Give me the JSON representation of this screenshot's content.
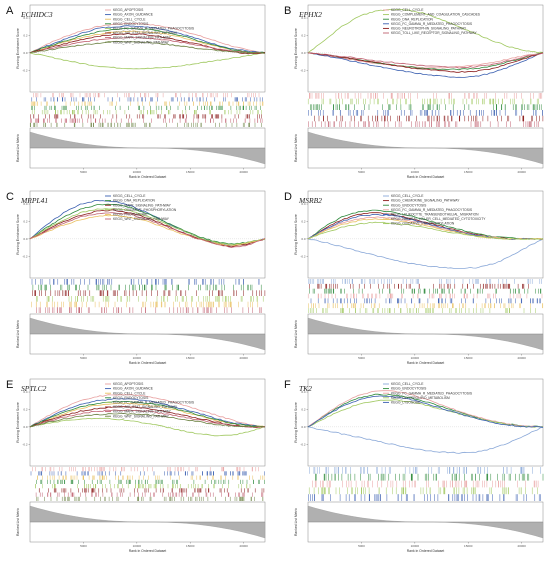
{
  "figure": {
    "panels": [
      {
        "letter": "A",
        "gene": "ECHIDC3",
        "ylabel_top": "Running Enrichment Score",
        "ylabel_bottom": "Ranked List Metric",
        "xlabel": "Rank in Ordered Dataset",
        "xticks": [
          "5000",
          "10000",
          "15000",
          "20000"
        ],
        "yticks": [
          "0.4",
          "0.2",
          "0.0",
          "-0.2"
        ],
        "legend": [
          "KEGG_APOPTOSIS",
          "KEGG_AXON_GUIDANCE",
          "KEGG_CELL_CYCLE",
          "KEGG_ENDOCYTOSIS",
          "KEGG_FC_GAMMA_R_MEDIATED_PHAGOCYTOSIS",
          "KEGG_JAK_STAT_SIGNALING_PATHWAY",
          "KEGG_MAPK_SIGNALING_PATHWAY",
          "KEGG_WNT_SIGNALING_PATHWAY"
        ],
        "colors": [
          "#e8a0a0",
          "#3a5fb0",
          "#e9c060",
          "#2e8a3c",
          "#a0c860",
          "#8a1a1a",
          "#c06070",
          "#6a8040"
        ],
        "series": [
          [
            0,
            0.1,
            0.18,
            0.25,
            0.3,
            0.33,
            0.34,
            0.33,
            0.3,
            0.26,
            0.2,
            0.14,
            0.08,
            0.03,
            0
          ],
          [
            0,
            0.08,
            0.15,
            0.22,
            0.28,
            0.3,
            0.31,
            0.3,
            0.27,
            0.22,
            0.16,
            0.1,
            0.05,
            0.02,
            0
          ],
          [
            0,
            0.06,
            0.12,
            0.17,
            0.21,
            0.24,
            0.25,
            0.24,
            0.22,
            0.18,
            0.13,
            0.08,
            0.04,
            0.01,
            0
          ],
          [
            0,
            0.07,
            0.13,
            0.19,
            0.24,
            0.27,
            0.28,
            0.27,
            0.24,
            0.2,
            0.14,
            0.09,
            0.04,
            0.01,
            0
          ],
          [
            0,
            -0.04,
            -0.08,
            -0.12,
            -0.15,
            -0.17,
            -0.18,
            -0.18,
            -0.17,
            -0.15,
            -0.12,
            -0.09,
            -0.06,
            -0.03,
            0
          ],
          [
            0,
            0.05,
            0.1,
            0.15,
            0.19,
            0.21,
            0.22,
            0.21,
            0.18,
            0.14,
            0.1,
            0.05,
            0.01,
            -0.01,
            0
          ],
          [
            0,
            0.04,
            0.08,
            0.12,
            0.15,
            0.17,
            0.18,
            0.17,
            0.15,
            0.12,
            0.09,
            0.05,
            0.02,
            0,
            0
          ],
          [
            0,
            0.03,
            0.06,
            0.09,
            0.11,
            0.13,
            0.13,
            0.12,
            0.1,
            0.08,
            0.05,
            0.03,
            0.01,
            0,
            0
          ]
        ]
      },
      {
        "letter": "B",
        "gene": "EPHX2",
        "ylabel_top": "Running Enrichment Score",
        "ylabel_bottom": "Ranked List Metric",
        "xlabel": "Rank in Ordered Dataset",
        "xticks": [
          "5000",
          "10000",
          "15000",
          "20000"
        ],
        "yticks": [
          "0.4",
          "0.2",
          "0.0",
          "-0.2"
        ],
        "legend": [
          "KEGG_CELL_CYCLE",
          "KEGG_COMPLEMENT_AND_COAGULATION_CASCADES",
          "KEGG_DNA_REPLICATION",
          "KEGG_FC_GAMMA_R_MEDIATED_PHAGOCYTOSIS",
          "KEGG_NEUROTROPHIN_SIGNALING_PATHWAY",
          "KEGG_TOLL_LIKE_RECEPTOR_SIGNALING_PATHWAY"
        ],
        "colors": [
          "#e8a0a0",
          "#a0c860",
          "#2e8a3c",
          "#3a5fb0",
          "#8a1a1a",
          "#c06070"
        ],
        "series": [
          [
            0,
            -0.03,
            -0.06,
            -0.09,
            -0.12,
            -0.14,
            -0.16,
            -0.17,
            -0.17,
            -0.16,
            -0.14,
            -0.11,
            -0.07,
            -0.03,
            0
          ],
          [
            0,
            0.15,
            0.3,
            0.42,
            0.48,
            0.5,
            0.49,
            0.45,
            0.38,
            0.3,
            0.22,
            0.14,
            0.07,
            0.02,
            0
          ],
          [
            0,
            -0.02,
            -0.05,
            -0.08,
            -0.11,
            -0.14,
            -0.16,
            -0.18,
            -0.19,
            -0.19,
            -0.18,
            -0.15,
            -0.1,
            -0.05,
            0
          ],
          [
            0,
            -0.03,
            -0.07,
            -0.11,
            -0.15,
            -0.19,
            -0.22,
            -0.25,
            -0.27,
            -0.28,
            -0.27,
            -0.23,
            -0.16,
            -0.08,
            0
          ],
          [
            0,
            -0.02,
            -0.05,
            -0.08,
            -0.11,
            -0.14,
            -0.17,
            -0.19,
            -0.21,
            -0.22,
            -0.21,
            -0.18,
            -0.12,
            -0.06,
            0
          ],
          [
            0,
            -0.02,
            -0.04,
            -0.06,
            -0.09,
            -0.11,
            -0.13,
            -0.15,
            -0.16,
            -0.17,
            -0.16,
            -0.13,
            -0.09,
            -0.04,
            0
          ]
        ]
      },
      {
        "letter": "C",
        "gene": "MRPL41",
        "ylabel_top": "Running Enrichment Score",
        "ylabel_bottom": "Ranked List Metric",
        "xlabel": "Rank in Ordered Dataset",
        "xticks": [
          "5000",
          "10000",
          "15000",
          "20000"
        ],
        "yticks": [
          "0.4",
          "0.2",
          "0.0",
          "-0.2"
        ],
        "legend": [
          "KEGG_CELL_CYCLE",
          "KEGG_DNA_REPLICATION",
          "KEGG_MAPK_SIGNALING_PATHWAY",
          "KEGG_OXIDATIVE_PHOSPHORYLATION",
          "KEGG_PROTEASOME",
          "KEGG_WNT_SIGNALING_PATHWAY"
        ],
        "colors": [
          "#3a5fb0",
          "#2e8a3c",
          "#8a1a1a",
          "#a0c860",
          "#e9c060",
          "#c06070"
        ],
        "series": [
          [
            0,
            0.16,
            0.3,
            0.4,
            0.44,
            0.43,
            0.38,
            0.3,
            0.2,
            0.1,
            0.02,
            -0.04,
            -0.08,
            -0.05,
            0
          ],
          [
            0,
            0.13,
            0.25,
            0.34,
            0.39,
            0.4,
            0.36,
            0.29,
            0.2,
            0.11,
            0.03,
            -0.03,
            -0.06,
            -0.04,
            0
          ],
          [
            0,
            0.1,
            0.2,
            0.27,
            0.32,
            0.33,
            0.3,
            0.24,
            0.16,
            0.08,
            0.01,
            -0.05,
            -0.09,
            -0.06,
            0
          ],
          [
            0,
            0.12,
            0.22,
            0.3,
            0.34,
            0.35,
            0.32,
            0.26,
            0.18,
            0.1,
            0.02,
            -0.04,
            -0.07,
            -0.04,
            0
          ],
          [
            0,
            0.08,
            0.16,
            0.22,
            0.26,
            0.27,
            0.25,
            0.2,
            0.13,
            0.06,
            0,
            -0.05,
            -0.08,
            -0.05,
            0
          ],
          [
            0,
            0.09,
            0.18,
            0.25,
            0.29,
            0.3,
            0.28,
            0.22,
            0.15,
            0.07,
            0,
            -0.06,
            -0.1,
            -0.07,
            0
          ]
        ]
      },
      {
        "letter": "D",
        "gene": "MSRB2",
        "ylabel_top": "Running Enrichment Score",
        "ylabel_bottom": "Ranked List Metric",
        "xlabel": "Rank in Ordered Dataset",
        "xticks": [
          "5000",
          "10000",
          "15000",
          "20000"
        ],
        "yticks": [
          "0.4",
          "0.2",
          "0.0",
          "-0.2"
        ],
        "legend": [
          "KEGG_CELL_CYCLE",
          "KEGG_CHEMOKINE_SIGNALING_PATHWAY",
          "KEGG_ENDOCYTOSIS",
          "KEGG_FC_GAMMA_R_MEDIATED_PHAGOCYTOSIS",
          "KEGG_LEUKOCYTE_TRANSENDOTHELIAL_MIGRATION",
          "KEGG_NATURAL_KILLER_CELL_MEDIATED_CYTOTOXICITY",
          "KEGG_OXIDATIVE_PHOSPHORYLATION"
        ],
        "colors": [
          "#8aa8d8",
          "#8a1a1a",
          "#2e8a3c",
          "#e8a0a0",
          "#3a5fb0",
          "#e9c060",
          "#a0c860"
        ],
        "series": [
          [
            0,
            -0.04,
            -0.09,
            -0.14,
            -0.19,
            -0.24,
            -0.28,
            -0.31,
            -0.33,
            -0.34,
            -0.33,
            -0.29,
            -0.21,
            -0.1,
            0
          ],
          [
            0,
            0.12,
            0.22,
            0.28,
            0.3,
            0.28,
            0.24,
            0.19,
            0.14,
            0.09,
            0.05,
            0.02,
            0,
            0,
            0
          ],
          [
            0,
            0.14,
            0.25,
            0.31,
            0.33,
            0.31,
            0.27,
            0.22,
            0.16,
            0.11,
            0.06,
            0.03,
            0.01,
            0,
            0
          ],
          [
            0,
            0.1,
            0.18,
            0.23,
            0.25,
            0.24,
            0.21,
            0.17,
            0.12,
            0.08,
            0.04,
            0.02,
            0,
            0,
            0
          ],
          [
            0,
            0.11,
            0.2,
            0.26,
            0.28,
            0.27,
            0.23,
            0.18,
            0.13,
            0.08,
            0.04,
            0.01,
            0,
            0,
            0
          ],
          [
            0,
            0.09,
            0.16,
            0.21,
            0.23,
            0.22,
            0.19,
            0.15,
            0.11,
            0.07,
            0.03,
            0.01,
            0,
            0,
            0
          ],
          [
            0,
            0.07,
            0.13,
            0.17,
            0.19,
            0.18,
            0.16,
            0.13,
            0.09,
            0.06,
            0.03,
            0.01,
            0,
            0,
            0
          ]
        ]
      },
      {
        "letter": "E",
        "gene": "SPTLC2",
        "ylabel_top": "Running Enrichment Score",
        "ylabel_bottom": "Ranked List Metric",
        "xlabel": "Rank in Ordered Dataset",
        "xticks": [
          "5000",
          "10000",
          "15000",
          "20000"
        ],
        "yticks": [
          "0.4",
          "0.2",
          "0.0",
          "-0.2"
        ],
        "legend": [
          "KEGG_APOPTOSIS",
          "KEGG_AXON_GUIDANCE",
          "KEGG_CELL_CYCLE",
          "KEGG_ENDOCYTOSIS",
          "KEGG_FC_GAMMA_R_MEDIATED_PHAGOCYTOSIS",
          "KEGG_JAK_STAT_SIGNALING_PATHWAY",
          "KEGG_MAPK_SIGNALING_PATHWAY",
          "KEGG_WNT_SIGNALING_PATHWAY"
        ],
        "colors": [
          "#e8a0a0",
          "#3a5fb0",
          "#e9c060",
          "#2e8a3c",
          "#a0c860",
          "#8a1a1a",
          "#c06070",
          "#6a8040"
        ],
        "series": [
          [
            0,
            0.12,
            0.22,
            0.3,
            0.35,
            0.37,
            0.37,
            0.35,
            0.31,
            0.26,
            0.2,
            0.14,
            0.08,
            0.03,
            0
          ],
          [
            0,
            0.1,
            0.19,
            0.26,
            0.3,
            0.32,
            0.32,
            0.3,
            0.26,
            0.21,
            0.16,
            0.1,
            0.05,
            0.02,
            0
          ],
          [
            0,
            0.08,
            0.15,
            0.21,
            0.25,
            0.27,
            0.27,
            0.25,
            0.22,
            0.18,
            0.13,
            0.08,
            0.04,
            0.01,
            0
          ],
          [
            0,
            0.09,
            0.17,
            0.23,
            0.27,
            0.29,
            0.29,
            0.27,
            0.24,
            0.19,
            0.14,
            0.09,
            0.04,
            0.01,
            0
          ],
          [
            0,
            0.04,
            0.07,
            0.09,
            0.1,
            0.09,
            0.07,
            0.04,
            0,
            -0.04,
            -0.08,
            -0.1,
            -0.1,
            -0.06,
            0
          ],
          [
            0,
            0.07,
            0.13,
            0.18,
            0.21,
            0.23,
            0.23,
            0.21,
            0.18,
            0.14,
            0.1,
            0.06,
            0.02,
            0,
            0
          ],
          [
            0,
            0.06,
            0.11,
            0.15,
            0.18,
            0.19,
            0.19,
            0.18,
            0.15,
            0.12,
            0.08,
            0.05,
            0.02,
            0,
            0
          ],
          [
            0,
            0.05,
            0.09,
            0.12,
            0.14,
            0.15,
            0.15,
            0.14,
            0.12,
            0.09,
            0.06,
            0.03,
            0.01,
            0,
            0
          ]
        ]
      },
      {
        "letter": "F",
        "gene": "TK2",
        "ylabel_top": "Running Enrichment Score",
        "ylabel_bottom": "Ranked List Metric",
        "xlabel": "Rank in Ordered Dataset",
        "xticks": [
          "5000",
          "10000",
          "15000",
          "20000"
        ],
        "yticks": [
          "0.4",
          "0.2",
          "0.0",
          "-0.2"
        ],
        "legend": [
          "KEGG_CELL_CYCLE",
          "KEGG_ENDOCYTOSIS",
          "KEGG_FC_GAMMA_R_MEDIATED_PHAGOCYTOSIS",
          "KEGG_GLYCEROLIPID_METABOLISM",
          "KEGG_LYSOSOME"
        ],
        "colors": [
          "#8aa8d8",
          "#2e8a3c",
          "#e8a0a0",
          "#a0c860",
          "#3a5fb0"
        ],
        "series": [
          [
            0,
            -0.04,
            -0.08,
            -0.12,
            -0.16,
            -0.2,
            -0.24,
            -0.27,
            -0.29,
            -0.3,
            -0.29,
            -0.25,
            -0.18,
            -0.09,
            0
          ],
          [
            0,
            0.13,
            0.25,
            0.33,
            0.37,
            0.37,
            0.34,
            0.29,
            0.23,
            0.17,
            0.11,
            0.06,
            0.03,
            0.01,
            0
          ],
          [
            0,
            0.14,
            0.27,
            0.36,
            0.41,
            0.41,
            0.38,
            0.32,
            0.25,
            0.18,
            0.12,
            0.07,
            0.03,
            0.01,
            0
          ],
          [
            0,
            0.1,
            0.19,
            0.26,
            0.3,
            0.31,
            0.29,
            0.25,
            0.2,
            0.15,
            0.1,
            0.06,
            0.02,
            0,
            0
          ],
          [
            0,
            0.12,
            0.23,
            0.31,
            0.35,
            0.35,
            0.32,
            0.27,
            0.21,
            0.15,
            0.1,
            0.05,
            0.02,
            0,
            0
          ]
        ]
      }
    ]
  }
}
